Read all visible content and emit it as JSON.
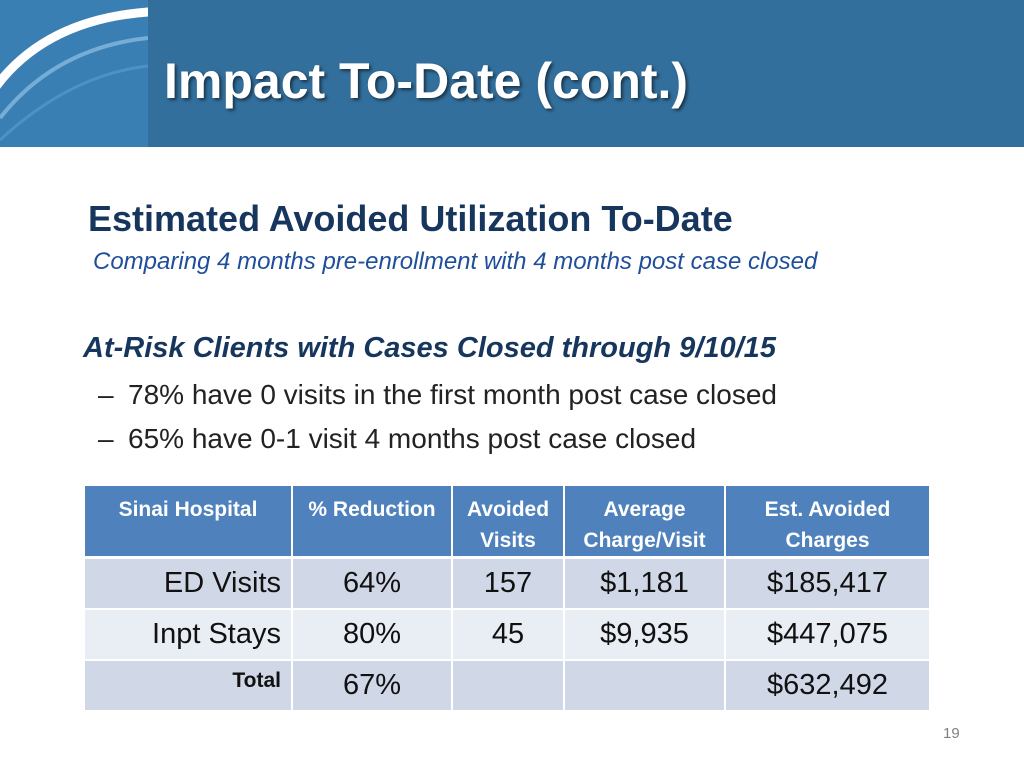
{
  "slide": {
    "title": "Impact To-Date (cont.)",
    "heading": "Estimated Avoided Utilization To-Date",
    "subheading": "Comparing 4 months pre-enrollment with 4 months post case closed",
    "section_title": "At-Risk Clients with Cases Closed through 9/10/15",
    "bullet_marker": "–",
    "bullets": [
      "78% have 0 visits in the first month post case closed",
      "65% have 0-1 visit 4 months post case closed"
    ],
    "page_number": "19"
  },
  "table": {
    "headers": [
      {
        "line1": "Sinai Hospital",
        "line2": ""
      },
      {
        "line1": "% Reduction",
        "line2": ""
      },
      {
        "line1": "Avoided",
        "line2": "Visits"
      },
      {
        "line1": "Average",
        "line2": "Charge/Visit"
      },
      {
        "line1": "Est. Avoided",
        "line2": "Charges"
      }
    ],
    "rows": [
      {
        "label": "ED Visits",
        "reduction": "64%",
        "visits": "157",
        "avg_charge": "$1,181",
        "avoided_charges": "$185,417"
      },
      {
        "label": "Inpt Stays",
        "reduction": "80%",
        "visits": "45",
        "avg_charge": "$9,935",
        "avoided_charges": "$447,075"
      },
      {
        "label": "Total",
        "reduction": "67%",
        "visits": "",
        "avg_charge": "",
        "avoided_charges": "$632,492"
      }
    ]
  },
  "colors": {
    "header_band": "#336f9c",
    "table_header": "#4f81bd",
    "row_dark": "#d0d8e8",
    "row_light": "#e9edf4",
    "heading_text": "#17365d"
  }
}
